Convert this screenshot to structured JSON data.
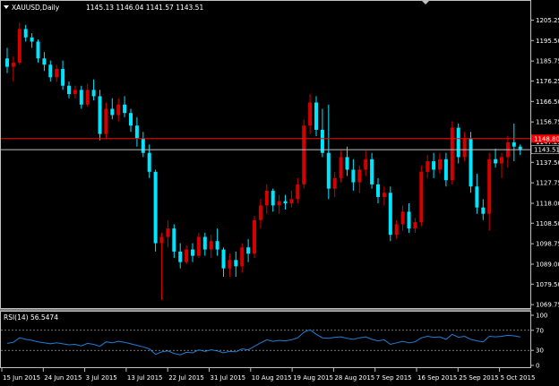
{
  "header": {
    "symbol": "XAUUSD,Daily",
    "ohlc": "1145.13 1146.04 1141.57 1143.51"
  },
  "colors": {
    "background": "#000000",
    "bull": "#d40000",
    "bear": "#00e5ff",
    "rsi_line": "#1e7fd8",
    "hline": "#ff0000",
    "price_line": "#c0c0c0",
    "axis": "#c0c0c0",
    "level_dashes": "#c0c0c0"
  },
  "hline": {
    "label": "1148.80",
    "value": 1148.8
  },
  "current_price": {
    "label": "1143.51",
    "value": 1143.51
  },
  "price_axis": {
    "min": 1069.8,
    "max": 1209.7,
    "ticks": [
      "1205.25",
      "1195.50",
      "1185.75",
      "1176.25",
      "1166.50",
      "1156.75",
      "1147.25",
      "1137.50",
      "1127.75",
      "1118.00",
      "1108.50",
      "1098.75",
      "1089.00",
      "1079.50",
      "1069.75"
    ]
  },
  "rsi": {
    "label": "RSI(14) 56.5474",
    "min": 0,
    "max": 100,
    "ticks": [
      "100",
      "70",
      "30",
      "0"
    ],
    "levels": [
      70,
      30
    ]
  },
  "date_axis": {
    "labels": [
      "15 Jun 2015",
      "24 Jun 2015",
      "3 Jul 2015",
      "13 Jul 2015",
      "22 Jul 2015",
      "31 Jul 2015",
      "10 Aug 2015",
      "19 Aug 2015",
      "28 Aug 2015",
      "7 Sep 2015",
      "16 Sep 2015",
      "25 Sep 2015",
      "5 Oct 2015"
    ]
  },
  "chart_data": [
    {
      "type": "candlestick",
      "title": "XAUUSD,Daily",
      "ylim": [
        1069.8,
        1209.7
      ],
      "candles": [
        [
          1187,
          1192,
          1180,
          1183
        ],
        [
          1183,
          1188,
          1176,
          1185
        ],
        [
          1185,
          1204,
          1184,
          1201
        ],
        [
          1201,
          1203,
          1195,
          1197
        ],
        [
          1197,
          1199,
          1192,
          1195
        ],
        [
          1195,
          1196,
          1185,
          1187
        ],
        [
          1187,
          1190,
          1181,
          1184
        ],
        [
          1184,
          1186,
          1176,
          1178
        ],
        [
          1178,
          1184,
          1176,
          1182
        ],
        [
          1182,
          1186,
          1172,
          1174
        ],
        [
          1174,
          1176,
          1168,
          1170
        ],
        [
          1170,
          1174,
          1168,
          1172
        ],
        [
          1172,
          1174,
          1163,
          1165
        ],
        [
          1165,
          1175,
          1164,
          1172
        ],
        [
          1172,
          1177,
          1167,
          1169
        ],
        [
          1169,
          1172,
          1148,
          1151
        ],
        [
          1151,
          1166,
          1149,
          1163
        ],
        [
          1163,
          1168,
          1158,
          1160
        ],
        [
          1160,
          1168,
          1157,
          1165
        ],
        [
          1165,
          1169,
          1159,
          1161
        ],
        [
          1161,
          1163,
          1152,
          1155
        ],
        [
          1155,
          1159,
          1145,
          1149
        ],
        [
          1149,
          1152,
          1140,
          1142
        ],
        [
          1142,
          1146,
          1130,
          1133
        ],
        [
          1133,
          1134,
          1095,
          1099
        ],
        [
          1099,
          1104,
          1072,
          1102
        ],
        [
          1102,
          1110,
          1097,
          1106
        ],
        [
          1106,
          1108,
          1092,
          1095
        ],
        [
          1095,
          1099,
          1087,
          1090
        ],
        [
          1090,
          1098,
          1089,
          1096
        ],
        [
          1096,
          1099,
          1090,
          1093
        ],
        [
          1093,
          1104,
          1092,
          1102
        ],
        [
          1102,
          1104,
          1093,
          1096
        ],
        [
          1096,
          1103,
          1092,
          1100
        ],
        [
          1100,
          1106,
          1093,
          1096
        ],
        [
          1096,
          1097,
          1083,
          1087
        ],
        [
          1087,
          1094,
          1083,
          1091
        ],
        [
          1091,
          1095,
          1083,
          1088
        ],
        [
          1088,
          1099,
          1085,
          1097
        ],
        [
          1097,
          1101,
          1090,
          1094
        ],
        [
          1094,
          1112,
          1092,
          1110
        ],
        [
          1110,
          1120,
          1106,
          1117
        ],
        [
          1117,
          1127,
          1113,
          1124
        ],
        [
          1124,
          1125,
          1114,
          1117
        ],
        [
          1117,
          1122,
          1113,
          1119
        ],
        [
          1119,
          1122,
          1115,
          1118
        ],
        [
          1118,
          1124,
          1116,
          1120
        ],
        [
          1120,
          1130,
          1118,
          1127
        ],
        [
          1127,
          1158,
          1125,
          1155
        ],
        [
          1155,
          1170,
          1151,
          1166
        ],
        [
          1166,
          1169,
          1150,
          1153
        ],
        [
          1153,
          1163,
          1140,
          1142
        ],
        [
          1142,
          1165,
          1120,
          1125
        ],
        [
          1125,
          1133,
          1121,
          1130
        ],
        [
          1130,
          1143,
          1128,
          1140
        ],
        [
          1140,
          1145,
          1131,
          1134
        ],
        [
          1134,
          1139,
          1124,
          1128
        ],
        [
          1128,
          1136,
          1123,
          1134
        ],
        [
          1134,
          1143,
          1131,
          1139
        ],
        [
          1139,
          1142,
          1125,
          1127
        ],
        [
          1127,
          1130,
          1118,
          1121
        ],
        [
          1121,
          1126,
          1117,
          1123
        ],
        [
          1123,
          1126,
          1100,
          1103
        ],
        [
          1103,
          1110,
          1101,
          1108
        ],
        [
          1108,
          1117,
          1105,
          1114
        ],
        [
          1114,
          1118,
          1104,
          1106
        ],
        [
          1106,
          1111,
          1104,
          1109
        ],
        [
          1109,
          1136,
          1107,
          1133
        ],
        [
          1133,
          1141,
          1130,
          1138
        ],
        [
          1138,
          1142,
          1130,
          1134
        ],
        [
          1134,
          1142,
          1132,
          1139
        ],
        [
          1139,
          1142,
          1126,
          1129
        ],
        [
          1129,
          1157,
          1127,
          1154
        ],
        [
          1154,
          1156,
          1137,
          1140
        ],
        [
          1140,
          1152,
          1138,
          1149
        ],
        [
          1149,
          1152,
          1123,
          1126
        ],
        [
          1126,
          1132,
          1113,
          1116
        ],
        [
          1116,
          1120,
          1110,
          1113
        ],
        [
          1113,
          1142,
          1105,
          1139
        ],
        [
          1139,
          1144,
          1135,
          1137
        ],
        [
          1137,
          1142,
          1130,
          1140
        ],
        [
          1140,
          1150,
          1135,
          1147
        ],
        [
          1147,
          1156,
          1138,
          1145
        ],
        [
          1145,
          1146,
          1141,
          1143.51
        ]
      ]
    },
    {
      "type": "line",
      "title": "RSI(14) 56.5474",
      "ylim": [
        0,
        100
      ],
      "series": [
        {
          "values": [
            44,
            46,
            55,
            52,
            50,
            47,
            45,
            43,
            45,
            43,
            41,
            42,
            39,
            44,
            42,
            38,
            47,
            45,
            48,
            46,
            43,
            40,
            37,
            33,
            22,
            27,
            29,
            24,
            21,
            26,
            25,
            31,
            28,
            31,
            29,
            25,
            28,
            27,
            33,
            31,
            38,
            45,
            51,
            48,
            50,
            49,
            51,
            55,
            66,
            71,
            62,
            55,
            54,
            56,
            57,
            54,
            52,
            55,
            57,
            52,
            49,
            51,
            42,
            45,
            48,
            45,
            47,
            55,
            58,
            56,
            57,
            52,
            62,
            56,
            58,
            52,
            49,
            47,
            58,
            57,
            58,
            60,
            59,
            56.55
          ]
        }
      ]
    }
  ]
}
